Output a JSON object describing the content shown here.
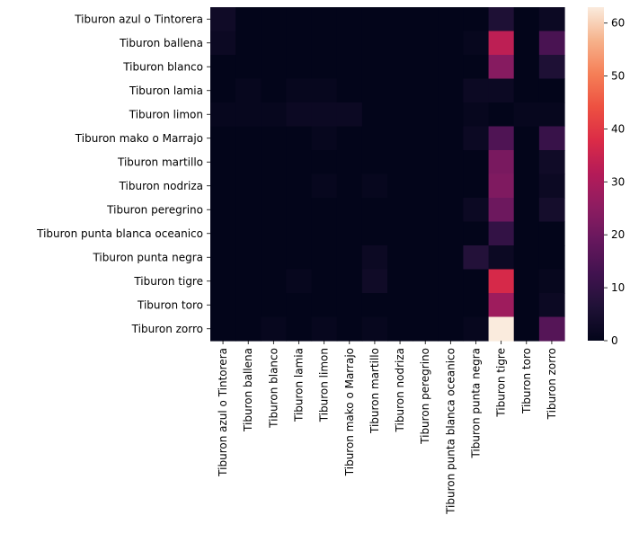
{
  "chart_data": {
    "type": "heatmap",
    "rows": [
      "Tiburon azul o Tintorera",
      "Tiburon ballena",
      "Tiburon blanco",
      "Tiburon lamia",
      "Tiburon limon",
      "Tiburon mako o Marrajo",
      "Tiburon martillo",
      "Tiburon nodriza",
      "Tiburon peregrino",
      "Tiburon punta blanca oceanico",
      "Tiburon punta negra",
      "Tiburon tigre",
      "Tiburon toro",
      "Tiburon zorro"
    ],
    "columns": [
      "Tiburon azul o Tintorera",
      "Tiburon ballena",
      "Tiburon blanco",
      "Tiburon lamia",
      "Tiburon limon",
      "Tiburon mako o Marrajo",
      "Tiburon martillo",
      "Tiburon nodriza",
      "Tiburon peregrino",
      "Tiburon punta blanca oceanico",
      "Tiburon punta negra",
      "Tiburon tigre",
      "Tiburon toro",
      "Tiburon zorro"
    ],
    "values": [
      [
        3,
        0,
        0,
        0,
        0,
        0,
        0,
        0,
        0,
        0,
        0,
        6,
        0,
        2
      ],
      [
        2,
        0,
        0,
        0,
        0,
        0,
        0,
        0,
        0,
        0,
        1,
        33,
        0,
        14
      ],
      [
        0,
        0,
        0,
        0,
        0,
        0,
        0,
        0,
        0,
        0,
        0,
        24,
        0,
        6
      ],
      [
        0,
        1,
        0,
        1,
        1,
        0,
        0,
        0,
        0,
        0,
        2,
        2,
        0,
        0
      ],
      [
        1,
        1,
        1,
        2,
        2,
        2,
        0,
        0,
        0,
        0,
        1,
        0,
        1,
        1
      ],
      [
        0,
        0,
        0,
        0,
        1,
        0,
        0,
        0,
        0,
        0,
        2,
        15,
        0,
        11
      ],
      [
        0,
        0,
        0,
        0,
        0,
        0,
        0,
        0,
        0,
        0,
        0,
        22,
        0,
        3
      ],
      [
        0,
        0,
        0,
        0,
        1,
        0,
        1,
        0,
        0,
        0,
        0,
        23,
        0,
        2
      ],
      [
        0,
        0,
        0,
        0,
        0,
        0,
        0,
        0,
        0,
        0,
        2,
        20,
        0,
        4
      ],
      [
        0,
        0,
        0,
        0,
        0,
        0,
        0,
        0,
        0,
        0,
        0,
        10,
        0,
        0
      ],
      [
        0,
        0,
        0,
        0,
        0,
        0,
        2,
        0,
        0,
        0,
        7,
        2,
        0,
        0
      ],
      [
        0,
        0,
        0,
        1,
        0,
        0,
        3,
        0,
        0,
        0,
        0,
        37,
        0,
        1
      ],
      [
        0,
        0,
        0,
        0,
        0,
        0,
        0,
        0,
        0,
        0,
        0,
        28,
        0,
        2
      ],
      [
        0,
        0,
        1,
        0,
        1,
        0,
        1,
        0,
        0,
        0,
        1,
        63,
        0,
        16
      ]
    ],
    "colorbar": {
      "min": 0,
      "max": 63,
      "ticks": [
        0,
        10,
        20,
        30,
        40,
        50,
        60
      ]
    }
  }
}
